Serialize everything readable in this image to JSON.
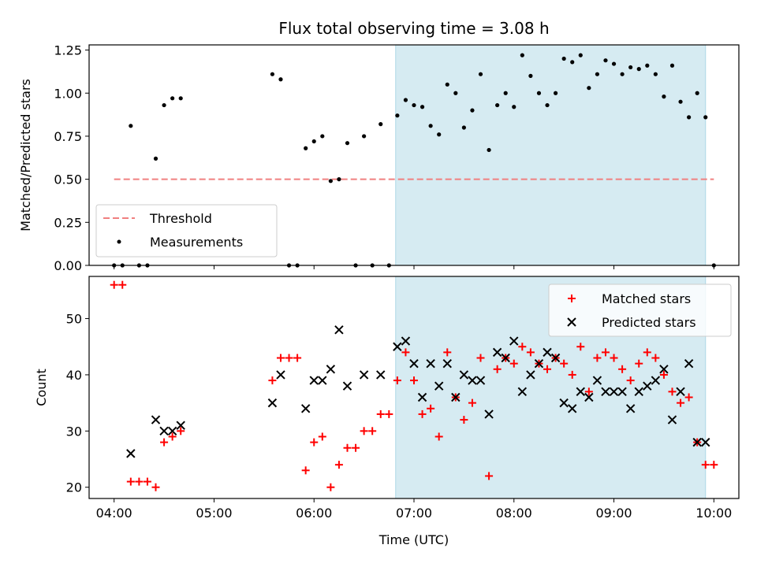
{
  "chart_data": [
    {
      "type": "scatter",
      "title": "Flux total observing time = 3.08 h",
      "xlabel": "",
      "ylabel": "Matched/Predicted stars",
      "ylim": [
        0,
        1.28
      ],
      "yticks": [
        "0.00",
        "0.25",
        "0.50",
        "0.75",
        "1.00",
        "1.25"
      ],
      "ytick_values": [
        0,
        0.25,
        0.5,
        0.75,
        1.0,
        1.25
      ],
      "xlim": [
        "03:45",
        "10:15"
      ],
      "shaded_span": [
        "06:49",
        "09:55"
      ],
      "threshold": {
        "name": "Threshold",
        "value": 0.5,
        "x_range": [
          "04:00",
          "10:00"
        ],
        "color": "#f08080"
      },
      "legend_position": "lower-left",
      "series": [
        {
          "name": "Measurements",
          "color": "#000000",
          "points": [
            [
              "04:00",
              0.0
            ],
            [
              "04:05",
              0.0
            ],
            [
              "04:10",
              0.81
            ],
            [
              "04:15",
              0.0
            ],
            [
              "04:20",
              0.0
            ],
            [
              "04:25",
              0.62
            ],
            [
              "04:30",
              0.93
            ],
            [
              "04:35",
              0.97
            ],
            [
              "04:40",
              0.97
            ],
            [
              "05:35",
              1.11
            ],
            [
              "05:40",
              1.08
            ],
            [
              "05:45",
              0.0
            ],
            [
              "05:50",
              0.0
            ],
            [
              "05:55",
              0.68
            ],
            [
              "06:00",
              0.72
            ],
            [
              "06:05",
              0.75
            ],
            [
              "06:10",
              0.49
            ],
            [
              "06:15",
              0.5
            ],
            [
              "06:20",
              0.71
            ],
            [
              "06:25",
              0.0
            ],
            [
              "06:30",
              0.75
            ],
            [
              "06:35",
              0.0
            ],
            [
              "06:40",
              0.82
            ],
            [
              "06:45",
              0.0
            ],
            [
              "06:50",
              0.87
            ],
            [
              "06:55",
              0.96
            ],
            [
              "07:00",
              0.93
            ],
            [
              "07:05",
              0.92
            ],
            [
              "07:10",
              0.81
            ],
            [
              "07:15",
              0.76
            ],
            [
              "07:20",
              1.05
            ],
            [
              "07:25",
              1.0
            ],
            [
              "07:30",
              0.8
            ],
            [
              "07:35",
              0.9
            ],
            [
              "07:40",
              1.11
            ],
            [
              "07:45",
              0.67
            ],
            [
              "07:50",
              0.93
            ],
            [
              "07:55",
              1.0
            ],
            [
              "08:00",
              0.92
            ],
            [
              "08:05",
              1.22
            ],
            [
              "08:10",
              1.1
            ],
            [
              "08:15",
              1.0
            ],
            [
              "08:20",
              0.93
            ],
            [
              "08:25",
              1.0
            ],
            [
              "08:30",
              1.2
            ],
            [
              "08:35",
              1.18
            ],
            [
              "08:40",
              1.22
            ],
            [
              "08:45",
              1.03
            ],
            [
              "08:50",
              1.11
            ],
            [
              "08:55",
              1.19
            ],
            [
              "09:00",
              1.17
            ],
            [
              "09:05",
              1.11
            ],
            [
              "09:10",
              1.15
            ],
            [
              "09:15",
              1.14
            ],
            [
              "09:20",
              1.16
            ],
            [
              "09:25",
              1.11
            ],
            [
              "09:30",
              0.98
            ],
            [
              "09:35",
              1.16
            ],
            [
              "09:40",
              0.95
            ],
            [
              "09:45",
              0.86
            ],
            [
              "09:50",
              1.0
            ],
            [
              "09:55",
              0.86
            ],
            [
              "10:00",
              0.0
            ]
          ]
        }
      ]
    },
    {
      "type": "scatter",
      "title": "",
      "xlabel": "Time (UTC)",
      "ylabel": "Count",
      "ylim": [
        18,
        57.5
      ],
      "yticks": [
        "20",
        "30",
        "40",
        "50"
      ],
      "ytick_values": [
        20,
        30,
        40,
        50
      ],
      "xlim": [
        "03:45",
        "10:15"
      ],
      "xticks": [
        "04:00",
        "05:00",
        "06:00",
        "07:00",
        "08:00",
        "09:00",
        "10:00"
      ],
      "shaded_span": [
        "06:49",
        "09:55"
      ],
      "legend_position": "upper-right",
      "series": [
        {
          "name": "Matched stars",
          "marker": "plus",
          "color": "#ff0000",
          "points": [
            [
              "04:00",
              56
            ],
            [
              "04:05",
              56
            ],
            [
              "04:10",
              21
            ],
            [
              "04:15",
              21
            ],
            [
              "04:20",
              21
            ],
            [
              "04:25",
              20
            ],
            [
              "04:30",
              28
            ],
            [
              "04:35",
              29
            ],
            [
              "04:40",
              30
            ],
            [
              "05:35",
              39
            ],
            [
              "05:40",
              43
            ],
            [
              "05:45",
              43
            ],
            [
              "05:50",
              43
            ],
            [
              "05:55",
              23
            ],
            [
              "06:00",
              28
            ],
            [
              "06:05",
              29
            ],
            [
              "06:10",
              20
            ],
            [
              "06:15",
              24
            ],
            [
              "06:20",
              27
            ],
            [
              "06:25",
              27
            ],
            [
              "06:30",
              30
            ],
            [
              "06:35",
              30
            ],
            [
              "06:40",
              33
            ],
            [
              "06:45",
              33
            ],
            [
              "06:50",
              39
            ],
            [
              "06:55",
              44
            ],
            [
              "07:00",
              39
            ],
            [
              "07:05",
              33
            ],
            [
              "07:10",
              34
            ],
            [
              "07:15",
              29
            ],
            [
              "07:20",
              44
            ],
            [
              "07:25",
              36
            ],
            [
              "07:30",
              32
            ],
            [
              "07:35",
              35
            ],
            [
              "07:40",
              43
            ],
            [
              "07:45",
              22
            ],
            [
              "07:50",
              41
            ],
            [
              "07:55",
              43
            ],
            [
              "08:00",
              42
            ],
            [
              "08:05",
              45
            ],
            [
              "08:10",
              44
            ],
            [
              "08:15",
              42
            ],
            [
              "08:20",
              41
            ],
            [
              "08:25",
              43
            ],
            [
              "08:30",
              42
            ],
            [
              "08:35",
              40
            ],
            [
              "08:40",
              45
            ],
            [
              "08:45",
              37
            ],
            [
              "08:50",
              43
            ],
            [
              "08:55",
              44
            ],
            [
              "09:00",
              43
            ],
            [
              "09:05",
              41
            ],
            [
              "09:10",
              39
            ],
            [
              "09:15",
              42
            ],
            [
              "09:20",
              44
            ],
            [
              "09:25",
              43
            ],
            [
              "09:30",
              40
            ],
            [
              "09:35",
              37
            ],
            [
              "09:40",
              35
            ],
            [
              "09:45",
              36
            ],
            [
              "09:50",
              28
            ],
            [
              "09:55",
              24
            ],
            [
              "10:00",
              24
            ]
          ]
        },
        {
          "name": "Predicted stars",
          "marker": "x",
          "color": "#000000",
          "points": [
            [
              "04:10",
              26
            ],
            [
              "04:25",
              32
            ],
            [
              "04:30",
              30
            ],
            [
              "04:35",
              30
            ],
            [
              "04:40",
              31
            ],
            [
              "05:35",
              35
            ],
            [
              "05:40",
              40
            ],
            [
              "05:55",
              34
            ],
            [
              "06:00",
              39
            ],
            [
              "06:05",
              39
            ],
            [
              "06:10",
              41
            ],
            [
              "06:15",
              48
            ],
            [
              "06:20",
              38
            ],
            [
              "06:30",
              40
            ],
            [
              "06:40",
              40
            ],
            [
              "06:50",
              45
            ],
            [
              "06:55",
              46
            ],
            [
              "07:00",
              42
            ],
            [
              "07:05",
              36
            ],
            [
              "07:10",
              42
            ],
            [
              "07:15",
              38
            ],
            [
              "07:20",
              42
            ],
            [
              "07:25",
              36
            ],
            [
              "07:30",
              40
            ],
            [
              "07:35",
              39
            ],
            [
              "07:40",
              39
            ],
            [
              "07:45",
              33
            ],
            [
              "07:50",
              44
            ],
            [
              "07:55",
              43
            ],
            [
              "08:00",
              46
            ],
            [
              "08:05",
              37
            ],
            [
              "08:10",
              40
            ],
            [
              "08:15",
              42
            ],
            [
              "08:20",
              44
            ],
            [
              "08:25",
              43
            ],
            [
              "08:30",
              35
            ],
            [
              "08:35",
              34
            ],
            [
              "08:40",
              37
            ],
            [
              "08:45",
              36
            ],
            [
              "08:50",
              39
            ],
            [
              "08:55",
              37
            ],
            [
              "09:00",
              37
            ],
            [
              "09:05",
              37
            ],
            [
              "09:10",
              34
            ],
            [
              "09:15",
              37
            ],
            [
              "09:20",
              38
            ],
            [
              "09:25",
              39
            ],
            [
              "09:30",
              41
            ],
            [
              "09:35",
              32
            ],
            [
              "09:40",
              37
            ],
            [
              "09:45",
              42
            ],
            [
              "09:50",
              28
            ],
            [
              "09:55",
              28
            ]
          ]
        }
      ]
    }
  ],
  "colors": {
    "shade": "#add8e6",
    "threshold": "#f08080",
    "matched": "#ff0000",
    "predicted": "#000000",
    "measurements": "#000000"
  }
}
